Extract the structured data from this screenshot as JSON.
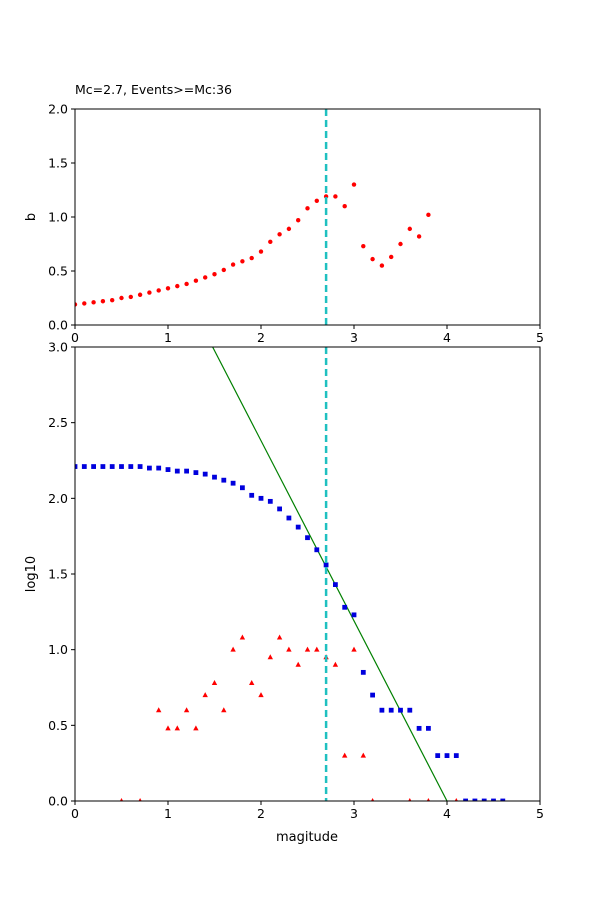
{
  "chart_data": [
    {
      "type": "scatter",
      "title": "Mc=2.7, Events>=Mc:36",
      "xlabel": "",
      "ylabel": "b",
      "xlim": [
        0,
        5
      ],
      "ylim": [
        0,
        2.0
      ],
      "xticks": [
        "0",
        "1",
        "2",
        "3",
        "4",
        "5"
      ],
      "yticks": [
        "0.0",
        "0.5",
        "1.0",
        "1.5",
        "2.0"
      ],
      "grid": false,
      "mc_line": {
        "x": 2.7,
        "color": "#1fc0c0",
        "style": "dashed"
      },
      "series": [
        {
          "marker": "circle",
          "color": "#ff0000",
          "points": [
            [
              0.0,
              0.19
            ],
            [
              0.1,
              0.2
            ],
            [
              0.2,
              0.21
            ],
            [
              0.3,
              0.22
            ],
            [
              0.4,
              0.23
            ],
            [
              0.5,
              0.25
            ],
            [
              0.6,
              0.26
            ],
            [
              0.7,
              0.28
            ],
            [
              0.8,
              0.3
            ],
            [
              0.9,
              0.32
            ],
            [
              1.0,
              0.34
            ],
            [
              1.1,
              0.36
            ],
            [
              1.2,
              0.38
            ],
            [
              1.3,
              0.41
            ],
            [
              1.4,
              0.44
            ],
            [
              1.5,
              0.47
            ],
            [
              1.6,
              0.51
            ],
            [
              1.7,
              0.56
            ],
            [
              1.8,
              0.59
            ],
            [
              1.9,
              0.62
            ],
            [
              2.0,
              0.68
            ],
            [
              2.1,
              0.77
            ],
            [
              2.2,
              0.84
            ],
            [
              2.3,
              0.89
            ],
            [
              2.4,
              0.97
            ],
            [
              2.5,
              1.08
            ],
            [
              2.6,
              1.15
            ],
            [
              2.7,
              1.19
            ],
            [
              2.8,
              1.19
            ],
            [
              2.9,
              1.1
            ],
            [
              3.0,
              1.3
            ],
            [
              3.1,
              0.73
            ],
            [
              3.2,
              0.61
            ],
            [
              3.3,
              0.55
            ],
            [
              3.4,
              0.63
            ],
            [
              3.5,
              0.75
            ],
            [
              3.6,
              0.89
            ],
            [
              3.7,
              0.82
            ],
            [
              3.8,
              1.02
            ]
          ]
        }
      ]
    },
    {
      "type": "scatter",
      "title": "",
      "xlabel": "magitude",
      "ylabel": "log10",
      "xlim": [
        0,
        5
      ],
      "ylim": [
        0,
        3.0
      ],
      "xticks": [
        "0",
        "1",
        "2",
        "3",
        "4",
        "5"
      ],
      "yticks": [
        "0.0",
        "0.5",
        "1.0",
        "1.5",
        "2.0",
        "2.5",
        "3.0"
      ],
      "grid": false,
      "mc_line": {
        "x": 2.7,
        "color": "#1fc0c0",
        "style": "dashed"
      },
      "fit_line": {
        "color": "#008000",
        "points": [
          [
            1.48,
            3.0
          ],
          [
            4.0,
            0.0
          ]
        ]
      },
      "series": [
        {
          "marker": "square",
          "color": "#0000dd",
          "points": [
            [
              0.0,
              2.21
            ],
            [
              0.1,
              2.21
            ],
            [
              0.2,
              2.21
            ],
            [
              0.3,
              2.21
            ],
            [
              0.4,
              2.21
            ],
            [
              0.5,
              2.21
            ],
            [
              0.6,
              2.21
            ],
            [
              0.7,
              2.21
            ],
            [
              0.8,
              2.2
            ],
            [
              0.9,
              2.2
            ],
            [
              1.0,
              2.19
            ],
            [
              1.1,
              2.18
            ],
            [
              1.2,
              2.18
            ],
            [
              1.3,
              2.17
            ],
            [
              1.4,
              2.16
            ],
            [
              1.5,
              2.14
            ],
            [
              1.6,
              2.12
            ],
            [
              1.7,
              2.1
            ],
            [
              1.8,
              2.07
            ],
            [
              1.9,
              2.02
            ],
            [
              2.0,
              2.0
            ],
            [
              2.1,
              1.98
            ],
            [
              2.2,
              1.93
            ],
            [
              2.3,
              1.87
            ],
            [
              2.4,
              1.81
            ],
            [
              2.5,
              1.74
            ],
            [
              2.6,
              1.66
            ],
            [
              2.7,
              1.56
            ],
            [
              2.8,
              1.43
            ],
            [
              2.9,
              1.28
            ],
            [
              3.0,
              1.23
            ],
            [
              3.1,
              0.85
            ],
            [
              3.2,
              0.7
            ],
            [
              3.3,
              0.6
            ],
            [
              3.4,
              0.6
            ],
            [
              3.5,
              0.6
            ],
            [
              3.6,
              0.6
            ],
            [
              3.7,
              0.48
            ],
            [
              3.8,
              0.48
            ],
            [
              3.9,
              0.3
            ],
            [
              4.0,
              0.3
            ],
            [
              4.1,
              0.3
            ],
            [
              4.2,
              0.0
            ],
            [
              4.3,
              0.0
            ],
            [
              4.4,
              0.0
            ],
            [
              4.5,
              0.0
            ],
            [
              4.6,
              0.0
            ]
          ]
        },
        {
          "marker": "triangle",
          "color": "#ff0000",
          "points": [
            [
              0.5,
              0.0
            ],
            [
              0.7,
              0.0
            ],
            [
              0.9,
              0.6
            ],
            [
              1.0,
              0.48
            ],
            [
              1.1,
              0.48
            ],
            [
              1.2,
              0.6
            ],
            [
              1.3,
              0.48
            ],
            [
              1.4,
              0.7
            ],
            [
              1.5,
              0.78
            ],
            [
              1.6,
              0.6
            ],
            [
              1.7,
              1.0
            ],
            [
              1.8,
              1.08
            ],
            [
              1.9,
              0.78
            ],
            [
              2.0,
              0.7
            ],
            [
              2.1,
              0.95
            ],
            [
              2.2,
              1.08
            ],
            [
              2.3,
              1.0
            ],
            [
              2.4,
              0.9
            ],
            [
              2.5,
              1.0
            ],
            [
              2.6,
              1.0
            ],
            [
              2.7,
              0.95
            ],
            [
              2.8,
              0.9
            ],
            [
              2.9,
              0.3
            ],
            [
              3.0,
              1.0
            ],
            [
              3.1,
              0.3
            ],
            [
              3.2,
              0.0
            ],
            [
              3.6,
              0.0
            ],
            [
              3.8,
              0.0
            ],
            [
              4.1,
              0.0
            ]
          ]
        }
      ]
    }
  ]
}
